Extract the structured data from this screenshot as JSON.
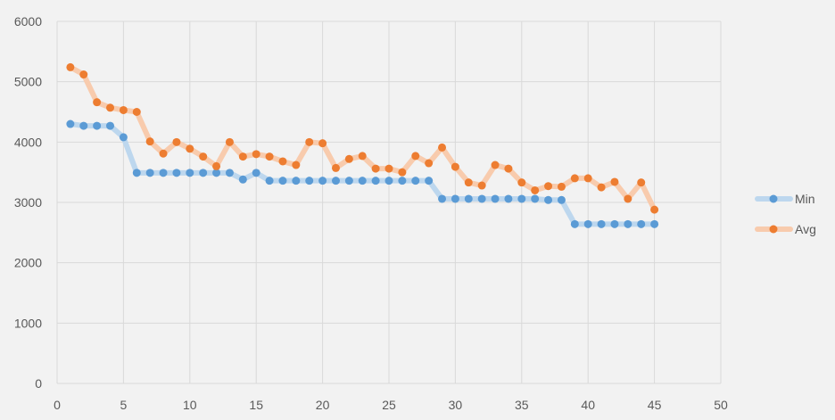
{
  "chart_data": {
    "type": "line",
    "title": "",
    "xlabel": "",
    "ylabel": "",
    "xlim": [
      0,
      50
    ],
    "ylim": [
      0,
      6000
    ],
    "x_ticks": [
      "0",
      "5",
      "10",
      "15",
      "20",
      "25",
      "30",
      "35",
      "40",
      "45",
      "50"
    ],
    "y_ticks": [
      "0",
      "1000",
      "2000",
      "3000",
      "4000",
      "5000",
      "6000"
    ],
    "grid": true,
    "legend_position": "right",
    "x": [
      1,
      2,
      3,
      4,
      5,
      6,
      7,
      8,
      9,
      10,
      11,
      12,
      13,
      14,
      15,
      16,
      17,
      18,
      19,
      20,
      21,
      22,
      23,
      24,
      25,
      26,
      27,
      28,
      29,
      30,
      31,
      32,
      33,
      34,
      35,
      36,
      37,
      38,
      39,
      40,
      41,
      42,
      43,
      44,
      45
    ],
    "series": [
      {
        "name": "Min",
        "color": "#5b9bd5",
        "line_color": "#bdd7ee",
        "values": [
          4300,
          4270,
          4270,
          4270,
          4080,
          3490,
          3490,
          3490,
          3490,
          3490,
          3490,
          3490,
          3490,
          3380,
          3490,
          3360,
          3360,
          3360,
          3360,
          3360,
          3360,
          3360,
          3360,
          3360,
          3360,
          3360,
          3360,
          3360,
          3060,
          3060,
          3060,
          3060,
          3060,
          3060,
          3060,
          3060,
          3040,
          3040,
          2640,
          2640,
          2640,
          2640,
          2640,
          2640,
          2640
        ]
      },
      {
        "name": "Avg",
        "color": "#ed7d31",
        "line_color": "#f8cbad",
        "values": [
          5240,
          5120,
          4660,
          4570,
          4530,
          4500,
          4010,
          3810,
          4000,
          3890,
          3760,
          3600,
          4000,
          3760,
          3800,
          3760,
          3680,
          3620,
          4000,
          3980,
          3570,
          3720,
          3770,
          3560,
          3560,
          3500,
          3770,
          3650,
          3910,
          3590,
          3330,
          3280,
          3620,
          3560,
          3330,
          3200,
          3270,
          3260,
          3400,
          3400,
          3250,
          3340,
          3060,
          3330,
          2880
        ]
      }
    ]
  }
}
